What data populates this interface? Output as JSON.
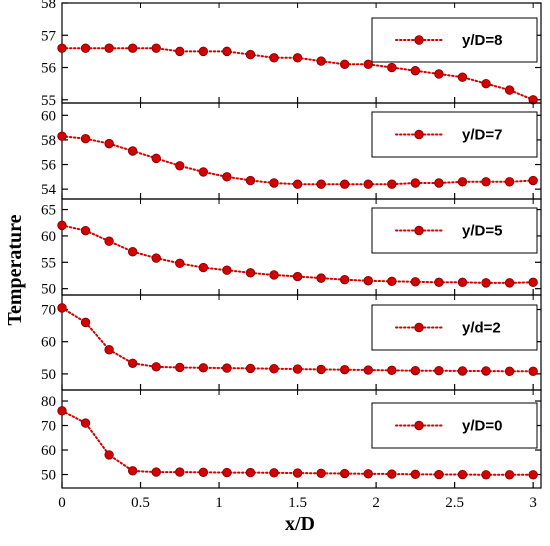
{
  "chart_data": {
    "type": "line",
    "xlabel": "x/D",
    "ylabel": "Temperature",
    "xlim": [
      0,
      3.05
    ],
    "xticks": [
      0,
      0.5,
      1,
      1.5,
      2,
      2.5,
      3
    ],
    "xtick_labels": [
      "0",
      "0.5",
      "1",
      "1.5",
      "2",
      "2.5",
      "3"
    ],
    "series_color": "#d40000",
    "marker": "circle",
    "line_style": "dotted",
    "panels": [
      {
        "legend": "y/D=8",
        "ylim": [
          54.9,
          58
        ],
        "yticks": [
          55,
          56,
          57,
          58
        ],
        "ytick_labels": [
          "55",
          "56",
          "57",
          "58"
        ],
        "x": [
          0,
          0.15,
          0.3,
          0.45,
          0.6,
          0.75,
          0.9,
          1.05,
          1.2,
          1.35,
          1.5,
          1.65,
          1.8,
          1.95,
          2.1,
          2.25,
          2.4,
          2.55,
          2.7,
          2.85,
          3.0
        ],
        "y": [
          56.6,
          56.6,
          56.6,
          56.6,
          56.6,
          56.5,
          56.5,
          56.5,
          56.4,
          56.3,
          56.3,
          56.2,
          56.1,
          56.1,
          56.0,
          55.9,
          55.8,
          55.7,
          55.5,
          55.3,
          55.0
        ]
      },
      {
        "legend": "y/D=7",
        "ylim": [
          53.2,
          61
        ],
        "yticks": [
          54,
          56,
          58,
          60
        ],
        "ytick_labels": [
          "54",
          "56",
          "58",
          "60"
        ],
        "x": [
          0,
          0.15,
          0.3,
          0.45,
          0.6,
          0.75,
          0.9,
          1.05,
          1.2,
          1.35,
          1.5,
          1.65,
          1.8,
          1.95,
          2.1,
          2.25,
          2.4,
          2.55,
          2.7,
          2.85,
          3.0
        ],
        "y": [
          58.3,
          58.1,
          57.7,
          57.1,
          56.5,
          55.9,
          55.4,
          55.0,
          54.7,
          54.5,
          54.4,
          54.4,
          54.4,
          54.4,
          54.4,
          54.5,
          54.5,
          54.6,
          54.6,
          54.6,
          54.7
        ]
      },
      {
        "legend": "y/D=5",
        "ylim": [
          48.8,
          67
        ],
        "yticks": [
          50,
          55,
          60,
          65
        ],
        "ytick_labels": [
          "50",
          "55",
          "60",
          "65"
        ],
        "x": [
          0,
          0.15,
          0.3,
          0.45,
          0.6,
          0.75,
          0.9,
          1.05,
          1.2,
          1.35,
          1.5,
          1.65,
          1.8,
          1.95,
          2.1,
          2.25,
          2.4,
          2.55,
          2.7,
          2.85,
          3.0
        ],
        "y": [
          62.0,
          61.0,
          59.0,
          57.0,
          55.8,
          54.8,
          54.0,
          53.5,
          53.0,
          52.6,
          52.3,
          52.0,
          51.7,
          51.5,
          51.4,
          51.3,
          51.2,
          51.2,
          51.1,
          51.1,
          51.2
        ]
      },
      {
        "legend": "y/d=2",
        "ylim": [
          45,
          74.5
        ],
        "yticks": [
          50,
          60,
          70
        ],
        "ytick_labels": [
          "50",
          "60",
          "70"
        ],
        "x": [
          0,
          0.15,
          0.3,
          0.45,
          0.6,
          0.75,
          0.9,
          1.05,
          1.2,
          1.35,
          1.5,
          1.65,
          1.8,
          1.95,
          2.1,
          2.25,
          2.4,
          2.55,
          2.7,
          2.85,
          3.0
        ],
        "y": [
          70.5,
          66.0,
          57.5,
          53.3,
          52.2,
          52.0,
          51.9,
          51.8,
          51.7,
          51.6,
          51.5,
          51.4,
          51.3,
          51.2,
          51.1,
          51.0,
          51.0,
          50.9,
          50.9,
          50.8,
          50.8
        ]
      },
      {
        "legend": "y/D=0",
        "ylim": [
          44.5,
          84.5
        ],
        "yticks": [
          50,
          60,
          70,
          80
        ],
        "ytick_labels": [
          "50",
          "60",
          "70",
          "80"
        ],
        "x": [
          0,
          0.15,
          0.3,
          0.45,
          0.6,
          0.75,
          0.9,
          1.05,
          1.2,
          1.35,
          1.5,
          1.65,
          1.8,
          1.95,
          2.1,
          2.25,
          2.4,
          2.55,
          2.7,
          2.85,
          3.0
        ],
        "y": [
          76.0,
          71.0,
          58.0,
          51.5,
          51.0,
          51.0,
          50.9,
          50.8,
          50.8,
          50.7,
          50.6,
          50.5,
          50.4,
          50.3,
          50.2,
          50.1,
          50.0,
          50.0,
          49.9,
          49.9,
          49.9
        ]
      }
    ]
  }
}
